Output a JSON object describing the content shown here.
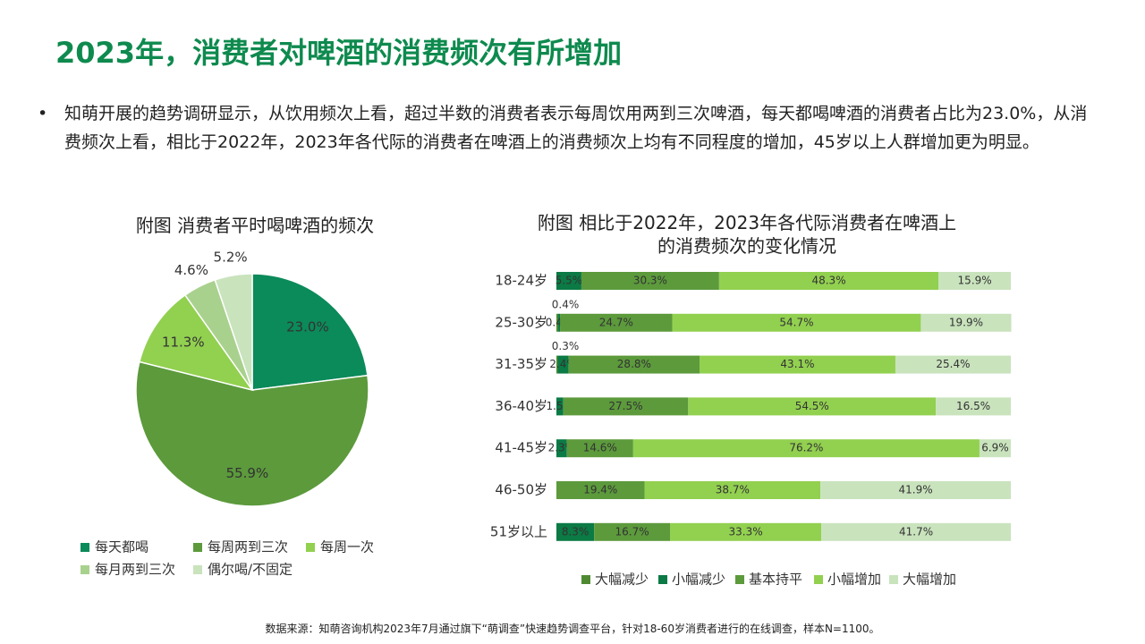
{
  "title": "2023年，消费者对啤酒的消费频次有所增加",
  "bullet": "知萌开展的趋势调研显示，从饮用频次上看，超过半数的消费者表示每周饮用两到三次啤酒，每天都喝啤酒的消费者占比为23.0%，从消费频次上看，相比于2022年，2023年各代际的消费者在啤酒上的消费频次上均有不同程度的增加，45岁以上人群增加更为明显。",
  "source": "数据来源：知萌咨询机构2023年7月通过旗下“萌调查”快速趋势调查平台，针对18-60岁消费者进行的在线调查，样本N=1100。",
  "chart_data": [
    {
      "type": "pie",
      "title": "附图 消费者平时喝啤酒的频次",
      "categories": [
        "每天都喝",
        "每周两到三次",
        "每周一次",
        "每月两到三次",
        "偶尔喝/不固定"
      ],
      "values": [
        23.0,
        55.9,
        11.3,
        4.6,
        5.2
      ],
      "value_labels": [
        "23.0%",
        "55.9%",
        "11.3%",
        "4.6%",
        "5.2%"
      ],
      "colors": [
        "#0b8a5a",
        "#5c9a3c",
        "#92d050",
        "#a9d18e",
        "#c9e3bd"
      ]
    },
    {
      "type": "stacked-bar-horizontal",
      "title": "附图 相比于2022年，2023年各代际消费者在啤酒上的消费频次的变化情况",
      "categories": [
        "18-24岁",
        "25-30岁",
        "31-35岁",
        "36-40岁",
        "41-45岁",
        "46-50岁",
        "51岁以上"
      ],
      "xlim": [
        0,
        100
      ],
      "series": [
        {
          "name": "大幅减少",
          "color": "#4f8a33",
          "values": [
            null,
            0.4,
            0.3,
            null,
            null,
            null,
            null
          ],
          "value_labels": [
            null,
            "0.4%",
            "0.3%",
            null,
            null,
            null,
            null
          ]
        },
        {
          "name": "小幅减少",
          "color": "#0b7a45",
          "values": [
            5.5,
            0.4,
            2.4,
            1.5,
            2.3,
            null,
            8.3
          ],
          "value_labels": [
            "5.5%",
            "0.4%",
            "2.4%",
            "1.5%",
            "2.3%",
            null,
            "8.3%"
          ]
        },
        {
          "name": "基本持平",
          "color": "#5c9a3c",
          "values": [
            30.3,
            24.7,
            28.8,
            27.5,
            14.6,
            19.4,
            16.7
          ],
          "value_labels": [
            "30.3%",
            "24.7%",
            "28.8%",
            "27.5%",
            "14.6%",
            "19.4%",
            "16.7%"
          ]
        },
        {
          "name": "小幅增加",
          "color": "#92d050",
          "values": [
            48.3,
            54.7,
            43.1,
            54.5,
            76.2,
            38.7,
            33.3
          ],
          "value_labels": [
            "48.3%",
            "54.7%",
            "43.1%",
            "54.5%",
            "76.2%",
            "38.7%",
            "33.3%"
          ]
        },
        {
          "name": "大幅增加",
          "color": "#c9e3bd",
          "values": [
            15.9,
            19.9,
            25.4,
            16.5,
            6.9,
            41.9,
            41.7
          ],
          "value_labels": [
            "15.9%",
            "19.9%",
            "25.4%",
            "16.5%",
            "6.9%",
            "41.9%",
            "41.7%"
          ]
        }
      ]
    }
  ]
}
